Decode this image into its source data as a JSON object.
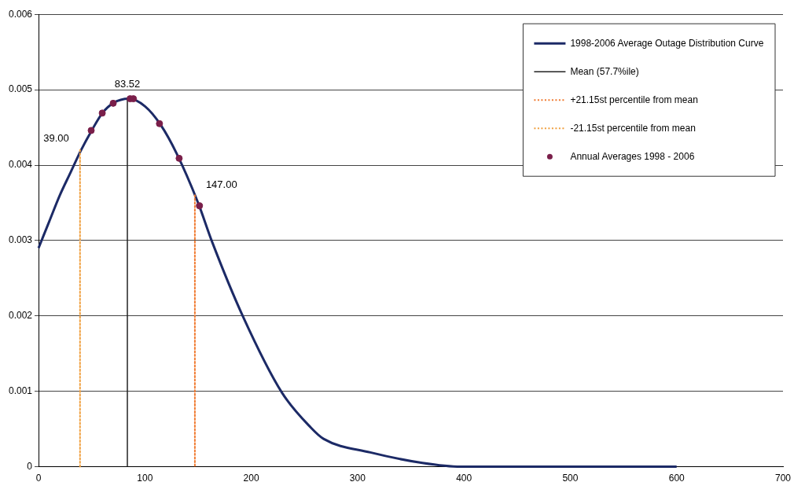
{
  "chart_data": {
    "type": "line",
    "xlim": [
      0,
      700
    ],
    "xticks": [
      0,
      100,
      200,
      300,
      400,
      500,
      600,
      700
    ],
    "ylim": [
      0,
      0.006
    ],
    "yticks": [
      0,
      0.001,
      0.002,
      0.003,
      0.004,
      0.005,
      0.006
    ],
    "grid": "y",
    "legend": "top right",
    "series": [
      {
        "name": "1998-2006 Average Outage Distribution Curve",
        "type": "line",
        "color": "#1c2a66",
        "line_style": "solid",
        "marker": "none",
        "x": [
          0,
          10,
          20,
          30,
          40,
          50,
          60,
          70,
          85,
          100,
          115,
          130,
          150,
          163,
          192,
          229,
          256,
          268,
          312,
          361,
          397,
          450,
          500,
          550,
          600
        ],
        "values": [
          0.0029,
          0.00325,
          0.0036,
          0.0039,
          0.0042,
          0.00446,
          0.00469,
          0.00482,
          0.00488,
          0.00478,
          0.00453,
          0.00415,
          0.0035,
          0.00299,
          0.002,
          0.00098,
          0.00052,
          0.00037,
          0.00019,
          5e-05,
          0,
          0,
          0,
          0,
          0
        ]
      },
      {
        "name": "Mean (57.7%ile)",
        "type": "line",
        "color": "#222222",
        "line_style": "solid",
        "marker": "none",
        "x": [
          83.52,
          83.52
        ],
        "values": [
          0,
          0.00488
        ]
      },
      {
        "name": "+21.15st percentile from mean",
        "type": "line",
        "color": "#f07a30",
        "line_style": "dotted",
        "marker": "none",
        "x": [
          147,
          147
        ],
        "values": [
          0.0036,
          0
        ]
      },
      {
        "name": "-21.15st percentile from mean",
        "type": "line",
        "color": "#f0a040",
        "line_style": "dotted",
        "marker": "none",
        "x": [
          39,
          39
        ],
        "values": [
          0.0042,
          0
        ]
      },
      {
        "name": "Annual Averages 1998 - 2006",
        "type": "scatter",
        "color": "#7a1f4a",
        "marker": "circle",
        "x": [
          49.5,
          59.9,
          70.2,
          86.1,
          89.2,
          113.7,
          132.2,
          151.3
        ],
        "values": [
          0.00446,
          0.00469,
          0.00482,
          0.00488,
          0.00488,
          0.00455,
          0.00409,
          0.00346
        ]
      }
    ],
    "annotations": [
      {
        "text": "83.52",
        "x": 83.52,
        "y": 0.00488
      },
      {
        "text": "39.00",
        "x": 39,
        "y": 0.0042
      },
      {
        "text": "147.00",
        "x": 147,
        "y": 0.0036
      }
    ]
  }
}
